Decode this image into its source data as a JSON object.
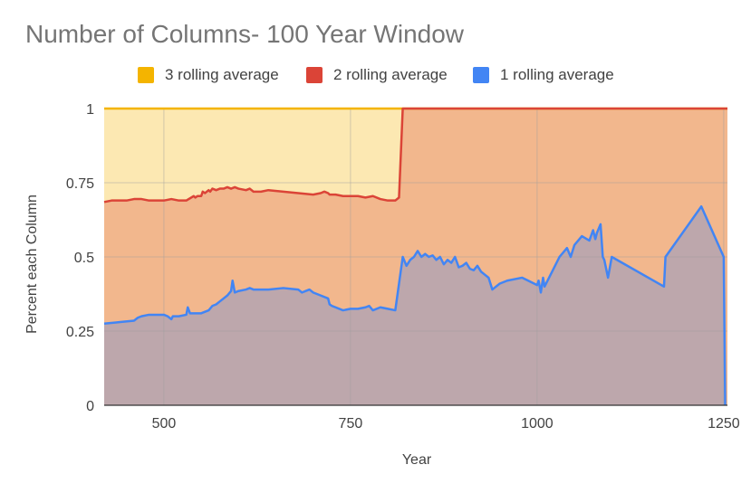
{
  "chart_data": {
    "type": "area",
    "stacked": "percent",
    "title": "Number of Columns- 100 Year Window",
    "xlabel": "Year",
    "ylabel": "Percent each Column",
    "xlim": [
      420,
      1255
    ],
    "ylim": [
      0,
      1
    ],
    "x_ticks": [
      500,
      750,
      1000,
      1250
    ],
    "y_ticks": [
      0,
      0.25,
      0.5,
      0.75,
      1
    ],
    "y_tick_labels": [
      "0",
      "0.25",
      "0.5",
      "0.75",
      "1"
    ],
    "grid": true,
    "legend_position": "top",
    "legend": [
      {
        "label": "3 rolling average",
        "color": "#F4B400"
      },
      {
        "label": "2 rolling average",
        "color": "#DB4437"
      },
      {
        "label": "1 rolling average",
        "color": "#4285F4"
      }
    ],
    "series": [
      {
        "name": "1 rolling average",
        "color": "#4285F4",
        "x": [
          420,
          440,
          460,
          465,
          470,
          480,
          500,
          505,
          510,
          512,
          515,
          520,
          530,
          532,
          535,
          540,
          545,
          550,
          555,
          560,
          565,
          570,
          575,
          580,
          585,
          590,
          592,
          595,
          600,
          610,
          615,
          620,
          640,
          660,
          680,
          685,
          690,
          695,
          700,
          710,
          720,
          722,
          725,
          730,
          740,
          750,
          760,
          770,
          775,
          780,
          790,
          800,
          810,
          820,
          825,
          830,
          835,
          840,
          845,
          850,
          855,
          860,
          865,
          870,
          875,
          880,
          885,
          890,
          895,
          900,
          905,
          910,
          915,
          920,
          925,
          930,
          935,
          940,
          950,
          960,
          980,
          1000,
          1002,
          1005,
          1008,
          1010,
          1020,
          1030,
          1040,
          1045,
          1050,
          1060,
          1070,
          1075,
          1078,
          1080,
          1085,
          1088,
          1090,
          1095,
          1100,
          1170,
          1172,
          1220,
          1250,
          1252
        ],
        "values": [
          0.275,
          0.28,
          0.285,
          0.295,
          0.3,
          0.305,
          0.305,
          0.3,
          0.29,
          0.3,
          0.3,
          0.3,
          0.305,
          0.33,
          0.31,
          0.31,
          0.31,
          0.31,
          0.315,
          0.32,
          0.335,
          0.34,
          0.35,
          0.36,
          0.37,
          0.385,
          0.42,
          0.38,
          0.385,
          0.39,
          0.395,
          0.39,
          0.39,
          0.395,
          0.39,
          0.38,
          0.385,
          0.39,
          0.38,
          0.37,
          0.36,
          0.34,
          0.335,
          0.33,
          0.32,
          0.325,
          0.325,
          0.33,
          0.335,
          0.32,
          0.33,
          0.325,
          0.32,
          0.5,
          0.47,
          0.49,
          0.5,
          0.52,
          0.5,
          0.51,
          0.5,
          0.505,
          0.49,
          0.5,
          0.475,
          0.49,
          0.48,
          0.5,
          0.465,
          0.47,
          0.48,
          0.46,
          0.455,
          0.47,
          0.45,
          0.44,
          0.43,
          0.39,
          0.41,
          0.42,
          0.43,
          0.405,
          0.42,
          0.38,
          0.43,
          0.4,
          0.45,
          0.5,
          0.53,
          0.5,
          0.54,
          0.57,
          0.555,
          0.59,
          0.56,
          0.58,
          0.61,
          0.5,
          0.49,
          0.43,
          0.5,
          0.4,
          0.5,
          0.67,
          0.5,
          0.0
        ]
      },
      {
        "name": "2 rolling average",
        "color": "#DB4437",
        "x": [
          420,
          430,
          450,
          460,
          470,
          480,
          490,
          500,
          510,
          520,
          530,
          540,
          542,
          545,
          550,
          552,
          555,
          560,
          562,
          565,
          570,
          575,
          580,
          585,
          590,
          595,
          600,
          610,
          615,
          620,
          630,
          640,
          660,
          680,
          700,
          710,
          715,
          720,
          722,
          730,
          740,
          760,
          770,
          780,
          790,
          800,
          810,
          815,
          820,
          830,
          1000,
          1250,
          1255
        ],
        "values": [
          0.685,
          0.69,
          0.69,
          0.695,
          0.695,
          0.69,
          0.69,
          0.69,
          0.695,
          0.69,
          0.69,
          0.705,
          0.7,
          0.705,
          0.705,
          0.72,
          0.715,
          0.725,
          0.72,
          0.73,
          0.725,
          0.73,
          0.73,
          0.735,
          0.73,
          0.735,
          0.73,
          0.725,
          0.73,
          0.72,
          0.72,
          0.725,
          0.72,
          0.715,
          0.71,
          0.715,
          0.72,
          0.715,
          0.71,
          0.71,
          0.705,
          0.705,
          0.7,
          0.705,
          0.695,
          0.69,
          0.69,
          0.7,
          1.0,
          1.0,
          1.0,
          1.0,
          1.0
        ]
      },
      {
        "name": "3 rolling average",
        "color": "#F4B400",
        "x": [
          420,
          1255
        ],
        "values": [
          1,
          1
        ]
      }
    ]
  }
}
